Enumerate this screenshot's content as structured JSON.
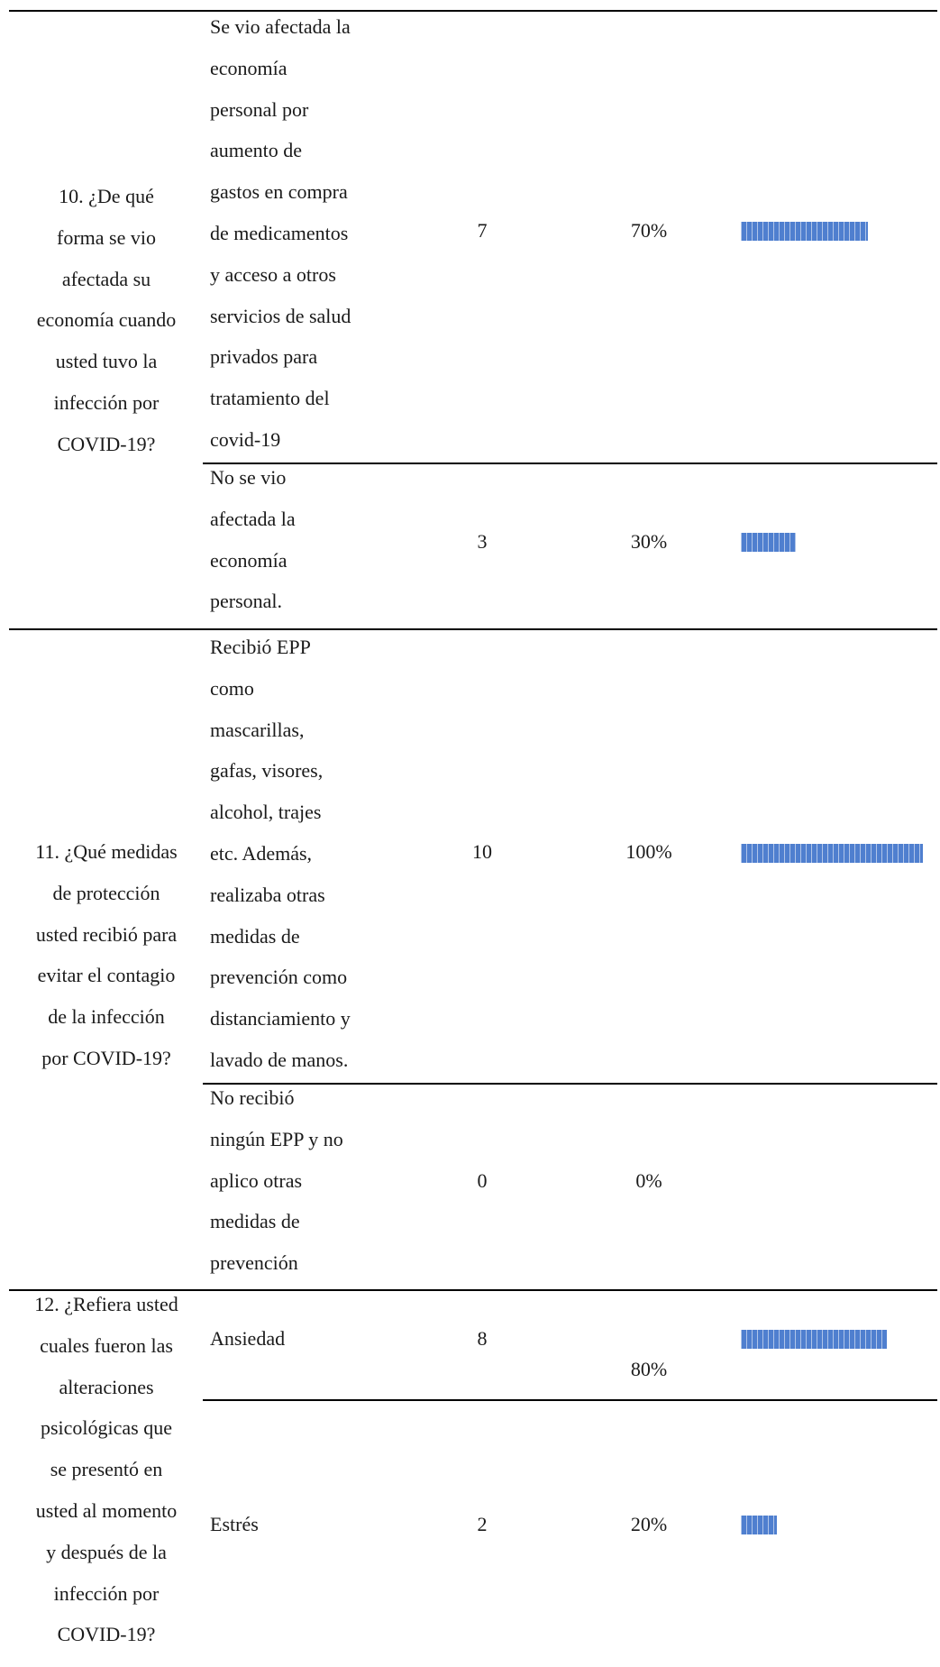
{
  "rows": [
    {
      "question_lines": [
        "10. ¿De qué",
        "forma se vio",
        "afectada su",
        "economía cuando",
        "usted tuvo la",
        "infección por",
        "COVID-19?"
      ],
      "answers": [
        {
          "lines": [
            "Se vio afectada la",
            "economía",
            "personal por",
            "aumento de",
            "gastos en compra",
            "de medicamentos",
            "y acceso a otros",
            "servicios de salud",
            "privados para",
            "tratamiento del",
            "covid-19"
          ],
          "count": "7",
          "percent": "70%",
          "fraction": 0.7
        },
        {
          "lines": [
            "No se vio",
            "afectada la",
            "economía",
            "personal."
          ],
          "count": "3",
          "percent": "30%",
          "fraction": 0.3
        }
      ]
    },
    {
      "question_lines": [
        "11. ¿Qué medidas",
        "de protección",
        "usted recibió para",
        "evitar el contagio",
        "de la infección",
        "por COVID-19?"
      ],
      "answers": [
        {
          "lines": [
            "Recibió EPP",
            "como",
            "mascarillas,",
            "gafas, visores,",
            "alcohol, trajes",
            "etc. Además,",
            "realizaba otras",
            "medidas de",
            "prevención como",
            "distanciamiento y",
            "lavado de manos."
          ],
          "count": "10",
          "percent": "100%",
          "fraction": 1.0
        },
        {
          "lines": [
            "No recibió",
            "ningún EPP y no",
            "aplico otras",
            "medidas de",
            "prevención"
          ],
          "count": "0",
          "percent": "0%",
          "fraction": 0
        }
      ]
    },
    {
      "question_lines": [
        "12. ¿Refiera usted",
        "cuales fueron las",
        "alteraciones",
        "psicológicas que",
        "se presentó en",
        "usted al momento",
        "y después de la",
        "infección por",
        "COVID-19?"
      ],
      "answers": [
        {
          "lines": [
            "Ansiedad"
          ],
          "count": "8",
          "percent": "80%",
          "fraction": 0.8
        },
        {
          "lines": [
            "Estrés"
          ],
          "count": "2",
          "percent": "20%",
          "fraction": 0.2
        }
      ]
    }
  ],
  "colors": {
    "bar": "#4f7fcf",
    "rule": "#000000"
  }
}
